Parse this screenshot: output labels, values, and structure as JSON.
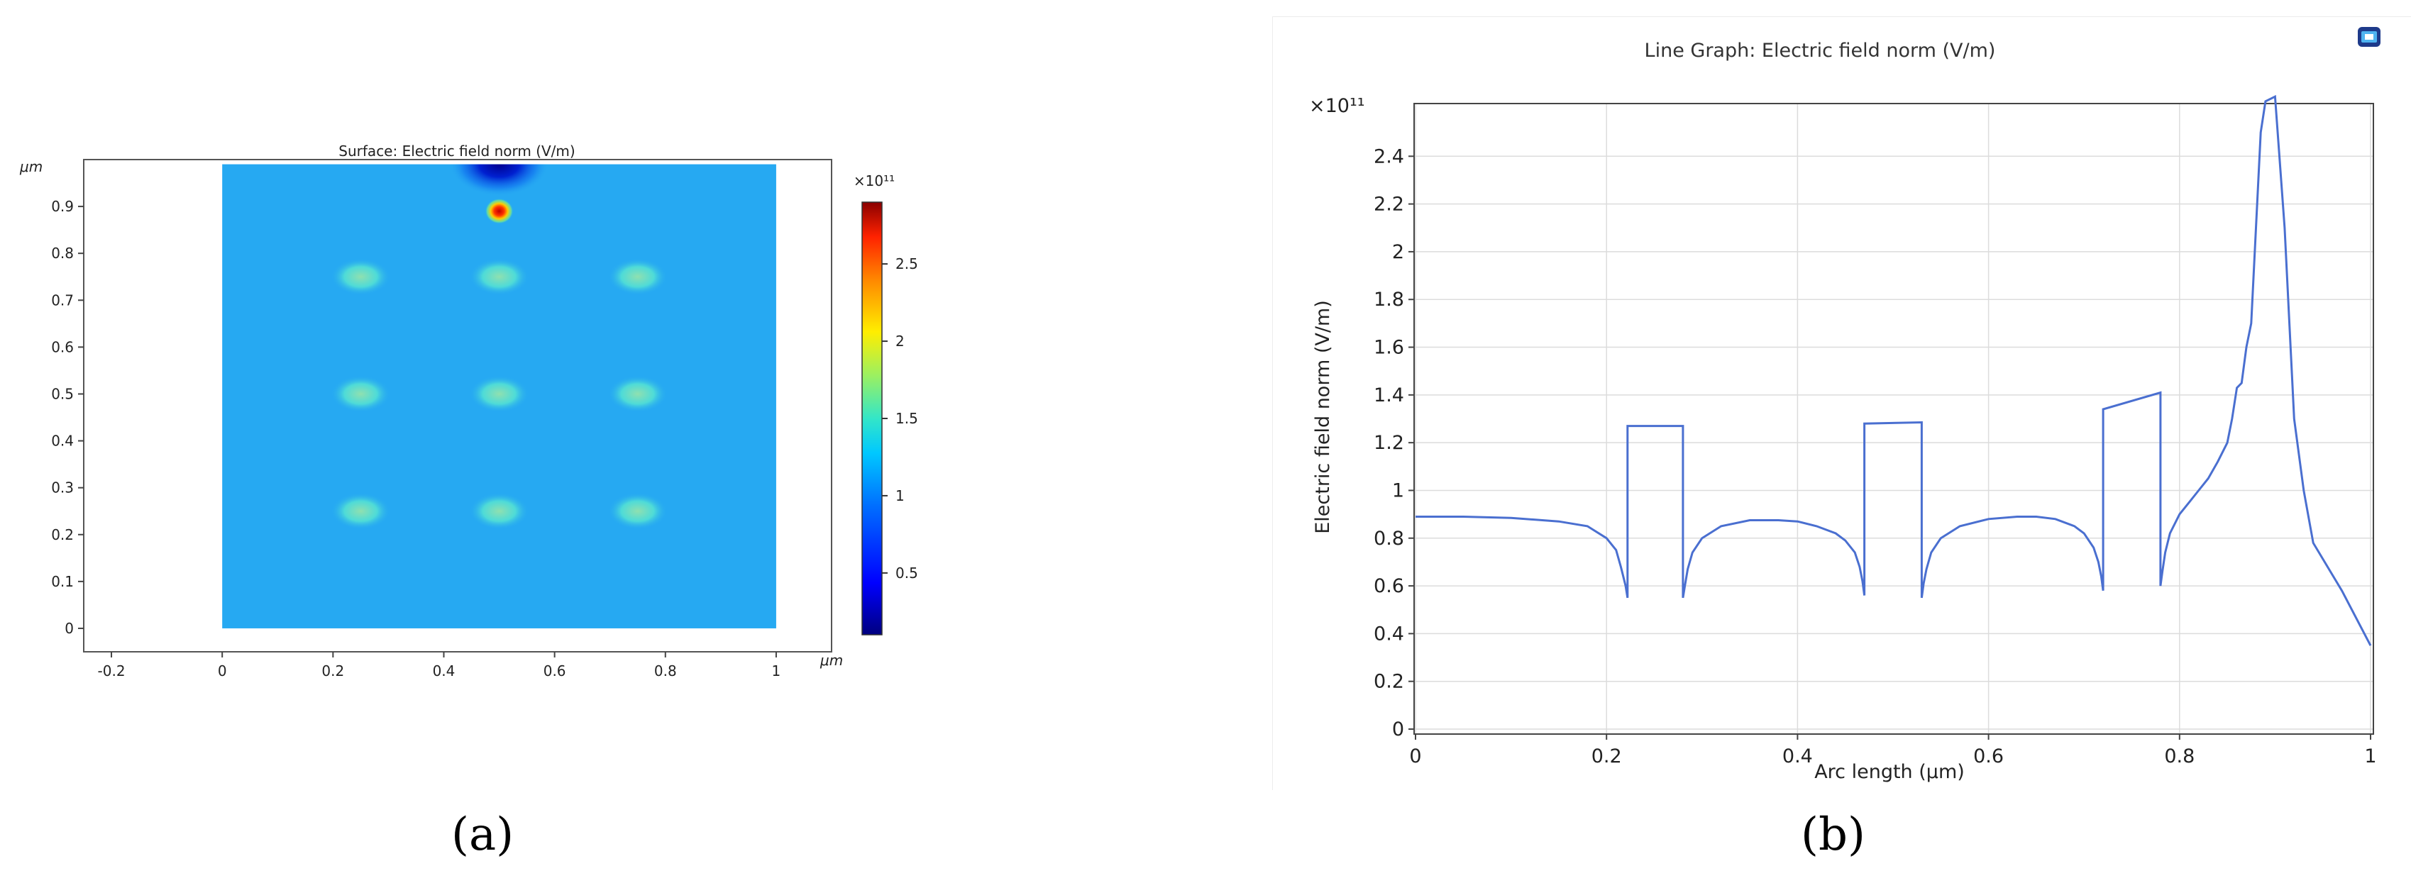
{
  "chart_data": [
    {
      "type": "heatmap",
      "title": "Surface: Electric field norm (V/m)",
      "x_unit": "μm",
      "y_unit": "μm",
      "xlim": [
        -0.25,
        1.1
      ],
      "ylim": [
        -0.05,
        1.0
      ],
      "domain": {
        "x": [
          0,
          1
        ],
        "y": [
          0,
          0.99
        ]
      },
      "x_ticks": [
        "-0.2",
        "0",
        "0.2",
        "0.4",
        "0.6",
        "0.8",
        "1"
      ],
      "y_ticks": [
        "0",
        "0.1",
        "0.2",
        "0.3",
        "0.4",
        "0.5",
        "0.6",
        "0.7",
        "0.8",
        "0.9"
      ],
      "background_value": 0.75,
      "hotspots": [
        {
          "x": 0.25,
          "y": 0.75,
          "value": 1.25
        },
        {
          "x": 0.5,
          "y": 0.75,
          "value": 1.3
        },
        {
          "x": 0.75,
          "y": 0.75,
          "value": 1.25
        },
        {
          "x": 0.25,
          "y": 0.5,
          "value": 1.25
        },
        {
          "x": 0.5,
          "y": 0.5,
          "value": 1.25
        },
        {
          "x": 0.75,
          "y": 0.5,
          "value": 1.25
        },
        {
          "x": 0.25,
          "y": 0.25,
          "value": 1.25
        },
        {
          "x": 0.5,
          "y": 0.25,
          "value": 1.25
        },
        {
          "x": 0.75,
          "y": 0.25,
          "value": 1.25
        }
      ],
      "peak": {
        "x": 0.5,
        "y": 0.89,
        "value": 2.9
      },
      "low_region": {
        "x": 0.5,
        "y": 0.99,
        "value": 0.1
      },
      "colorbar": {
        "exponent": "×10¹¹",
        "min": 0.1,
        "max": 2.9,
        "ticks": [
          "0.5",
          "1",
          "1.5",
          "2",
          "2.5"
        ],
        "colormap": "rainbow"
      }
    },
    {
      "type": "line",
      "title": "Line Graph: Electric field norm (V/m)",
      "xlabel": "Arc length (μm)",
      "ylabel": "Electric field norm (V/m)",
      "y_exponent": "×10¹¹",
      "xlim": [
        0,
        1
      ],
      "ylim": [
        0,
        2.6
      ],
      "x_ticks": [
        "0",
        "0.2",
        "0.4",
        "0.6",
        "0.8",
        "1"
      ],
      "y_ticks": [
        "0",
        "0.2",
        "0.4",
        "0.6",
        "0.8",
        "1",
        "1.2",
        "1.4",
        "1.6",
        "1.8",
        "2",
        "2.2",
        "2.4"
      ],
      "grid": true,
      "line_color": "#4a6fd0",
      "x": [
        0,
        0.05,
        0.1,
        0.15,
        0.18,
        0.2,
        0.21,
        0.215,
        0.22,
        0.222,
        0.222,
        0.28,
        0.28,
        0.282,
        0.285,
        0.29,
        0.3,
        0.32,
        0.35,
        0.38,
        0.4,
        0.42,
        0.44,
        0.45,
        0.46,
        0.465,
        0.468,
        0.47,
        0.47,
        0.53,
        0.53,
        0.532,
        0.535,
        0.54,
        0.55,
        0.57,
        0.6,
        0.63,
        0.65,
        0.67,
        0.69,
        0.7,
        0.71,
        0.715,
        0.718,
        0.72,
        0.72,
        0.78,
        0.78,
        0.782,
        0.785,
        0.79,
        0.8,
        0.81,
        0.82,
        0.83,
        0.84,
        0.85,
        0.855,
        0.86,
        0.865,
        0.87,
        0.875,
        0.88,
        0.885,
        0.89,
        0.9,
        0.91,
        0.92,
        0.93,
        0.94,
        0.97,
        1.0
      ],
      "y": [
        0.89,
        0.89,
        0.885,
        0.87,
        0.85,
        0.8,
        0.75,
        0.68,
        0.6,
        0.55,
        1.27,
        1.27,
        0.55,
        0.6,
        0.67,
        0.74,
        0.8,
        0.85,
        0.875,
        0.875,
        0.87,
        0.85,
        0.82,
        0.79,
        0.74,
        0.68,
        0.62,
        0.56,
        1.28,
        1.285,
        0.55,
        0.61,
        0.67,
        0.74,
        0.8,
        0.85,
        0.88,
        0.89,
        0.89,
        0.88,
        0.85,
        0.82,
        0.76,
        0.7,
        0.64,
        0.58,
        1.34,
        1.41,
        0.6,
        0.66,
        0.74,
        0.82,
        0.9,
        0.95,
        1.0,
        1.05,
        1.12,
        1.2,
        1.3,
        1.43,
        1.45,
        1.6,
        1.7,
        2.1,
        2.5,
        2.63,
        2.65,
        2.1,
        1.3,
        1.0,
        0.78,
        0.58,
        0.35
      ]
    }
  ],
  "captions": {
    "a": "(a)",
    "b": "(b)"
  },
  "icon": "image-export-icon"
}
